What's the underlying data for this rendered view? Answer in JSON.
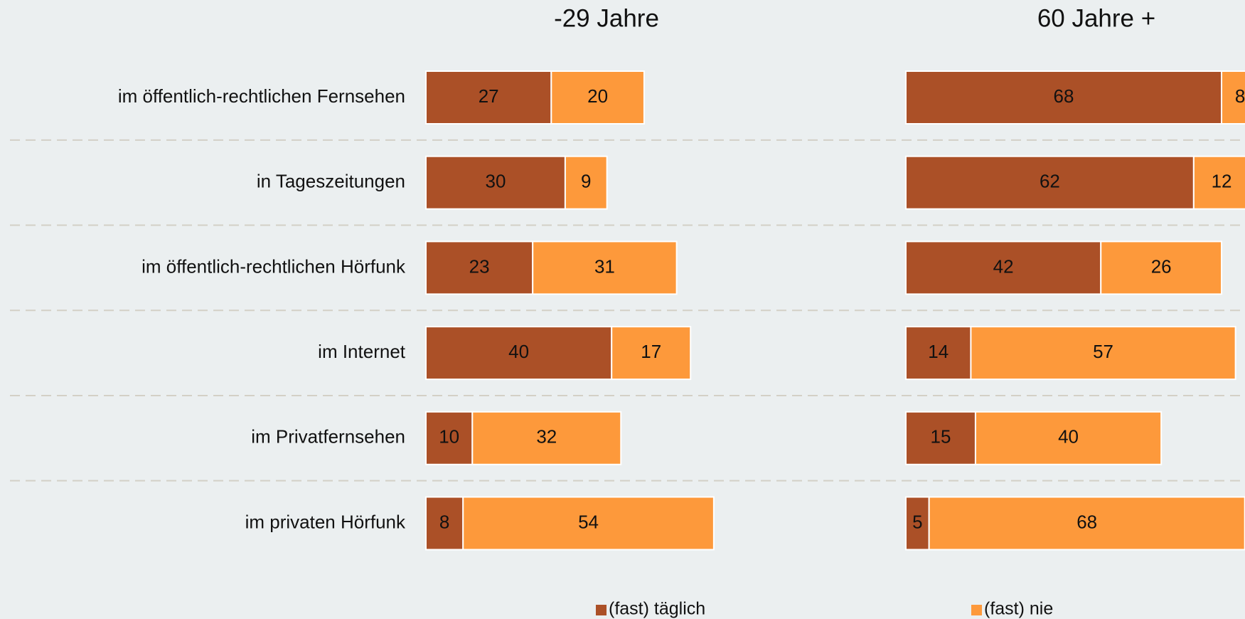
{
  "chart_data": {
    "type": "bar",
    "stacked": true,
    "orientation": "horizontal",
    "categories": [
      "im öffentlich-rechtlichen Fernsehen",
      "in Tageszeitungen",
      "im öffentlich-rechtlichen Hörfunk",
      "im Internet",
      "im Privatfernsehen",
      "im privaten Hörfunk"
    ],
    "series": [
      {
        "name": "(fast) täglich",
        "color": "#ab5027"
      },
      {
        "name": "(fast) nie",
        "color": "#fd993b"
      }
    ],
    "panels": [
      {
        "title": "-29 Jahre",
        "values": [
          [
            27,
            30,
            23,
            40,
            10,
            8
          ],
          [
            20,
            9,
            31,
            17,
            32,
            54
          ]
        ]
      },
      {
        "title": "60 Jahre +",
        "values": [
          [
            68,
            62,
            42,
            14,
            15,
            5
          ],
          [
            8,
            12,
            26,
            57,
            40,
            68
          ]
        ]
      }
    ]
  }
}
